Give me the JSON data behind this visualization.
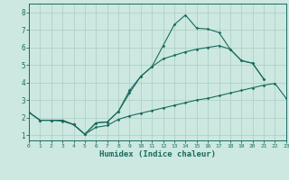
{
  "xlabel": "Humidex (Indice chaleur)",
  "bg_color": "#cce8e0",
  "grid_color": "#aaccC4",
  "line_color": "#1a6b5e",
  "line1_x": [
    0,
    1,
    2,
    3,
    4,
    5,
    6,
    7,
    8,
    9,
    10,
    11,
    12,
    13,
    14,
    15,
    16,
    17,
    18,
    19,
    20,
    21
  ],
  "line1_y": [
    2.3,
    1.85,
    1.85,
    1.85,
    1.6,
    1.05,
    1.7,
    1.75,
    2.35,
    3.55,
    4.35,
    4.9,
    6.1,
    7.3,
    7.85,
    7.1,
    7.05,
    6.85,
    5.9,
    5.25,
    5.1,
    4.2
  ],
  "line2_x": [
    0,
    1,
    2,
    3,
    4,
    5,
    6,
    7,
    8,
    9,
    10,
    11,
    12,
    13,
    14,
    15,
    16,
    17,
    18,
    19,
    20,
    21,
    22,
    23
  ],
  "line2_y": [
    2.3,
    1.85,
    1.85,
    1.8,
    1.6,
    1.05,
    1.45,
    1.55,
    1.9,
    2.1,
    2.25,
    2.4,
    2.55,
    2.7,
    2.85,
    3.0,
    3.1,
    3.25,
    3.4,
    3.55,
    3.7,
    3.85,
    3.95,
    3.1
  ],
  "line3_x": [
    0,
    1,
    2,
    3,
    4,
    5,
    6,
    7,
    8,
    9,
    10,
    11,
    12,
    13,
    14,
    15,
    16,
    17,
    18,
    19,
    20,
    21
  ],
  "line3_y": [
    2.3,
    1.85,
    1.85,
    1.85,
    1.6,
    1.05,
    1.7,
    1.75,
    2.35,
    3.4,
    4.35,
    4.9,
    5.35,
    5.55,
    5.75,
    5.9,
    6.0,
    6.1,
    5.9,
    5.25,
    5.1,
    4.2
  ],
  "xlim": [
    0,
    23
  ],
  "ylim": [
    0.7,
    8.5
  ],
  "yticks": [
    1,
    2,
    3,
    4,
    5,
    6,
    7,
    8
  ],
  "xticks": [
    0,
    1,
    2,
    3,
    4,
    5,
    6,
    7,
    8,
    9,
    10,
    11,
    12,
    13,
    14,
    15,
    16,
    17,
    18,
    19,
    20,
    21,
    22,
    23
  ]
}
